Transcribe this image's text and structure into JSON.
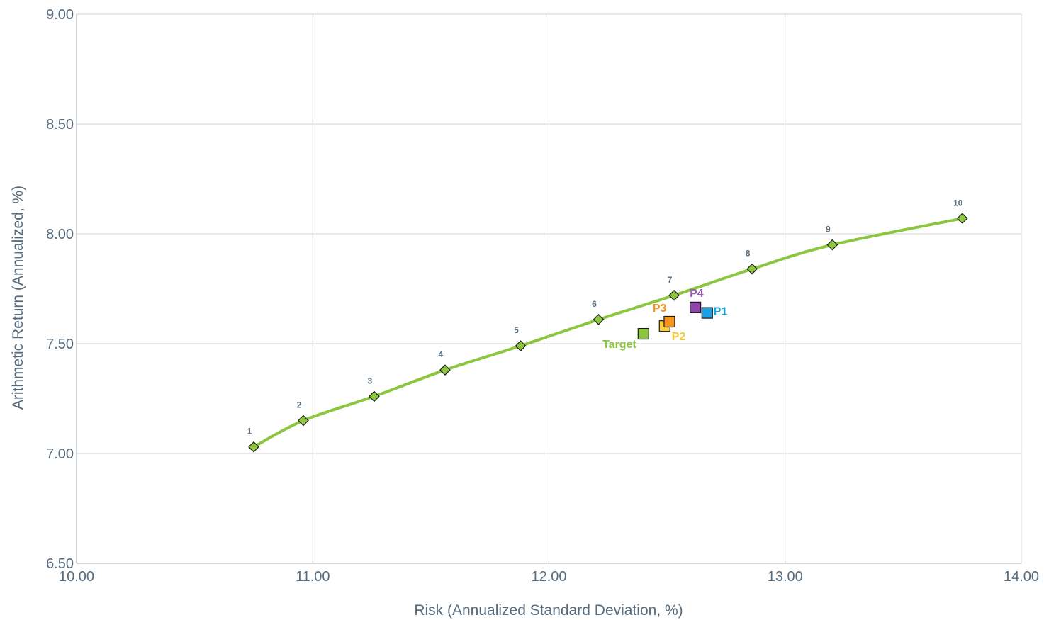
{
  "chart_data": {
    "type": "scatter",
    "xlabel": "Risk (Annualized Standard Deviation, %)",
    "ylabel": "Arithmetic Return (Annualized, %)",
    "xlim": [
      10.0,
      14.0
    ],
    "ylim": [
      6.5,
      9.0
    ],
    "x_ticks": [
      "10.00",
      "11.00",
      "12.00",
      "13.00",
      "14.00"
    ],
    "y_ticks": [
      "6.50",
      "7.00",
      "7.50",
      "8.00",
      "8.50",
      "9.00"
    ],
    "grid": true,
    "frontier": {
      "color": "#8cc63f",
      "points": [
        {
          "label": "1",
          "x": 10.75,
          "y": 7.03
        },
        {
          "label": "2",
          "x": 10.96,
          "y": 7.15
        },
        {
          "label": "3",
          "x": 11.26,
          "y": 7.26
        },
        {
          "label": "4",
          "x": 11.56,
          "y": 7.38
        },
        {
          "label": "5",
          "x": 11.88,
          "y": 7.49
        },
        {
          "label": "6",
          "x": 12.21,
          "y": 7.61
        },
        {
          "label": "7",
          "x": 12.53,
          "y": 7.72
        },
        {
          "label": "8",
          "x": 12.86,
          "y": 7.84
        },
        {
          "label": "9",
          "x": 13.2,
          "y": 7.95
        },
        {
          "label": "10",
          "x": 13.75,
          "y": 8.07
        }
      ]
    },
    "portfolios": [
      {
        "name": "Target",
        "x": 12.4,
        "y": 7.545,
        "color": "#8cc63f",
        "label_color": "#8cc63f"
      },
      {
        "name": "P2",
        "x": 12.49,
        "y": 7.58,
        "color": "#fcd036",
        "label_color": "#f6c934"
      },
      {
        "name": "P3",
        "x": 12.51,
        "y": 7.6,
        "color": "#f7941d",
        "label_color": "#f7941d"
      },
      {
        "name": "P4",
        "x": 12.62,
        "y": 7.665,
        "color": "#8e44ad",
        "label_color": "#9b59b6"
      },
      {
        "name": "P1",
        "x": 12.67,
        "y": 7.64,
        "color": "#1ba1e2",
        "label_color": "#1ba1e2"
      }
    ]
  }
}
